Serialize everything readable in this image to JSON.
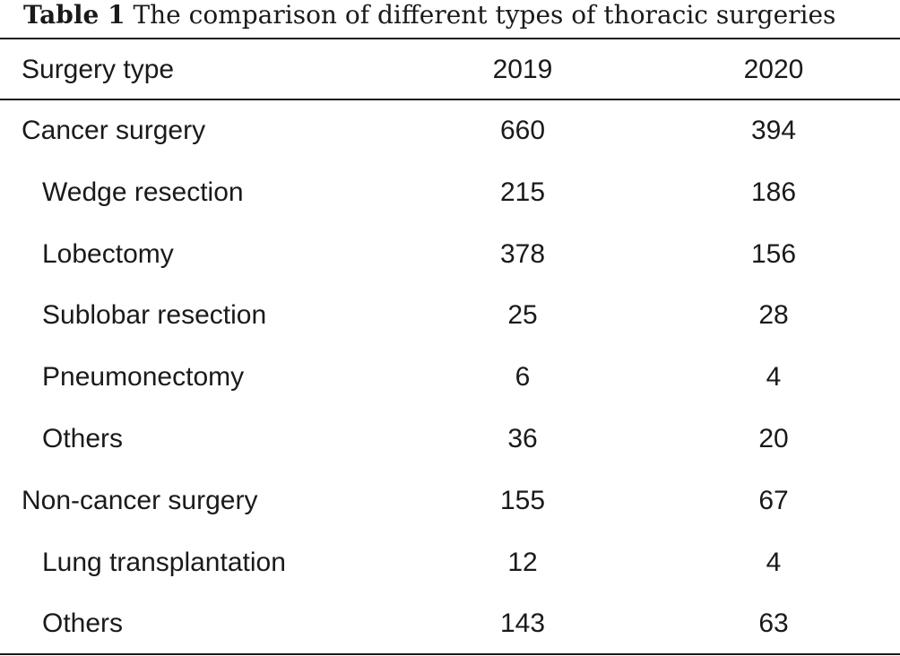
{
  "caption": {
    "label": "Table 1",
    "text": "The comparison of different types of thoracic surgeries"
  },
  "table": {
    "headers": [
      "Surgery type",
      "2019",
      "2020"
    ],
    "rows": [
      [
        "Cancer surgery",
        "660",
        "394"
      ],
      [
        "Wedge resection",
        "215",
        "186"
      ],
      [
        "Lobectomy",
        "378",
        "156"
      ],
      [
        "Sublobar resection",
        "25",
        "28"
      ],
      [
        "Pneumonectomy",
        "6",
        "4"
      ],
      [
        "Others",
        "36",
        "20"
      ],
      [
        "Non-cancer surgery",
        "155",
        "67"
      ],
      [
        "Lung transplantation",
        "12",
        "4"
      ],
      [
        "Others",
        "143",
        "63"
      ]
    ]
  }
}
